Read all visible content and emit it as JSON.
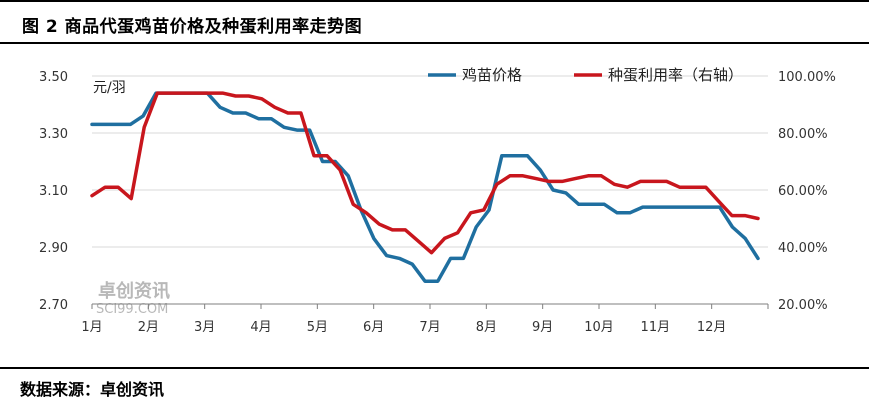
{
  "figure_title": "图 2  商品代蛋鸡苗价格及种蛋利用率走势图",
  "source": "数据来源：卓创资讯",
  "watermark": {
    "cn": "卓创资讯",
    "en": "SCI99.COM"
  },
  "chart_data": {
    "type": "line",
    "unit_label": "元/羽",
    "x_tick_labels": [
      "1月",
      "2月",
      "3月",
      "4月",
      "5月",
      "6月",
      "7月",
      "8月",
      "9月",
      "10月",
      "11月",
      "12月"
    ],
    "y_left": {
      "lim": [
        2.7,
        3.5
      ],
      "ticks": [
        "2.70",
        "2.90",
        "3.10",
        "3.30",
        "3.50"
      ]
    },
    "y_right": {
      "lim": [
        20,
        100
      ],
      "ticks": [
        "20.00%",
        "40.00%",
        "60.00%",
        "80.00%",
        "100.00%"
      ]
    },
    "grid": "horizontal",
    "legend_position": "top-right",
    "series": [
      {
        "name": "鸡苗价格",
        "axis": "left",
        "color": "#1f6fa0",
        "values": [
          3.33,
          3.33,
          3.33,
          3.33,
          3.36,
          3.44,
          3.44,
          3.44,
          3.44,
          3.44,
          3.39,
          3.37,
          3.37,
          3.35,
          3.35,
          3.32,
          3.31,
          3.31,
          3.2,
          3.2,
          3.15,
          3.03,
          2.93,
          2.87,
          2.86,
          2.84,
          2.78,
          2.78,
          2.86,
          2.86,
          2.97,
          3.03,
          3.22,
          3.22,
          3.22,
          3.17,
          3.1,
          3.09,
          3.05,
          3.05,
          3.05,
          3.02,
          3.02,
          3.04,
          3.04,
          3.04,
          3.04,
          3.04,
          3.04,
          3.04,
          2.97,
          2.93,
          2.86
        ]
      },
      {
        "name": "种蛋利用率（右轴）",
        "axis": "right",
        "color": "#c8161d",
        "values": [
          58,
          61,
          61,
          57,
          82,
          94,
          94,
          94,
          94,
          94,
          94,
          93,
          93,
          92,
          89,
          87,
          87,
          72,
          72,
          67,
          55,
          52,
          48,
          46,
          46,
          42,
          38,
          43,
          45,
          52,
          53,
          62,
          65,
          65,
          64,
          63,
          63,
          64,
          65,
          65,
          62,
          61,
          63,
          63,
          63,
          61,
          61,
          61,
          56,
          51,
          51,
          50
        ]
      }
    ]
  }
}
